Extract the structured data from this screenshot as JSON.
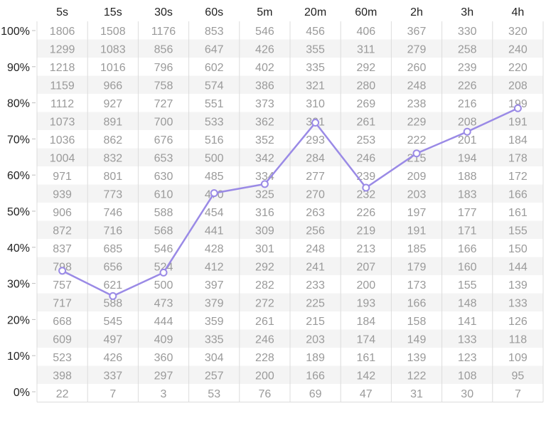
{
  "chart_data": {
    "type": "table",
    "columns": [
      "5s",
      "15s",
      "30s",
      "60s",
      "5m",
      "20m",
      "60m",
      "2h",
      "3h",
      "4h"
    ],
    "y_ticks": [
      "100%",
      "90%",
      "80%",
      "70%",
      "60%",
      "50%",
      "40%",
      "30%",
      "20%",
      "10%",
      "0%"
    ],
    "ylim": [
      0,
      100
    ],
    "rows": [
      [
        1806,
        1508,
        1176,
        853,
        546,
        456,
        406,
        367,
        330,
        320
      ],
      [
        1299,
        1083,
        856,
        647,
        426,
        355,
        311,
        279,
        258,
        240
      ],
      [
        1218,
        1016,
        796,
        602,
        402,
        335,
        292,
        260,
        239,
        220
      ],
      [
        1159,
        966,
        758,
        574,
        386,
        321,
        280,
        248,
        226,
        208
      ],
      [
        1112,
        927,
        727,
        551,
        373,
        310,
        269,
        238,
        216,
        199
      ],
      [
        1073,
        891,
        700,
        533,
        362,
        301,
        261,
        229,
        208,
        191
      ],
      [
        1036,
        862,
        676,
        516,
        352,
        293,
        253,
        222,
        201,
        184
      ],
      [
        1004,
        832,
        653,
        500,
        342,
        284,
        246,
        215,
        194,
        178
      ],
      [
        971,
        801,
        630,
        485,
        334,
        277,
        239,
        209,
        188,
        172
      ],
      [
        939,
        773,
        610,
        470,
        325,
        270,
        232,
        203,
        183,
        166
      ],
      [
        906,
        746,
        588,
        454,
        316,
        263,
        226,
        197,
        177,
        161
      ],
      [
        872,
        716,
        568,
        441,
        309,
        256,
        219,
        191,
        171,
        155
      ],
      [
        837,
        685,
        546,
        428,
        301,
        248,
        213,
        185,
        166,
        150
      ],
      [
        798,
        656,
        524,
        412,
        292,
        241,
        207,
        179,
        160,
        144
      ],
      [
        757,
        621,
        500,
        397,
        282,
        233,
        200,
        173,
        155,
        139
      ],
      [
        717,
        588,
        473,
        379,
        272,
        225,
        193,
        166,
        148,
        133
      ],
      [
        668,
        545,
        444,
        359,
        261,
        215,
        184,
        158,
        141,
        126
      ],
      [
        609,
        497,
        409,
        335,
        246,
        203,
        174,
        149,
        133,
        118
      ],
      [
        523,
        426,
        360,
        304,
        228,
        189,
        161,
        139,
        123,
        109
      ],
      [
        398,
        337,
        297,
        257,
        200,
        166,
        142,
        122,
        108,
        95
      ],
      [
        22,
        7,
        3,
        53,
        76,
        69,
        47,
        31,
        30,
        7
      ]
    ],
    "series": [
      {
        "values": [
          33.5,
          26.5,
          33,
          55,
          57.5,
          74.5,
          56.5,
          66,
          72,
          78.5
        ]
      }
    ],
    "line_color": "#9a8ae6",
    "grid": true
  }
}
